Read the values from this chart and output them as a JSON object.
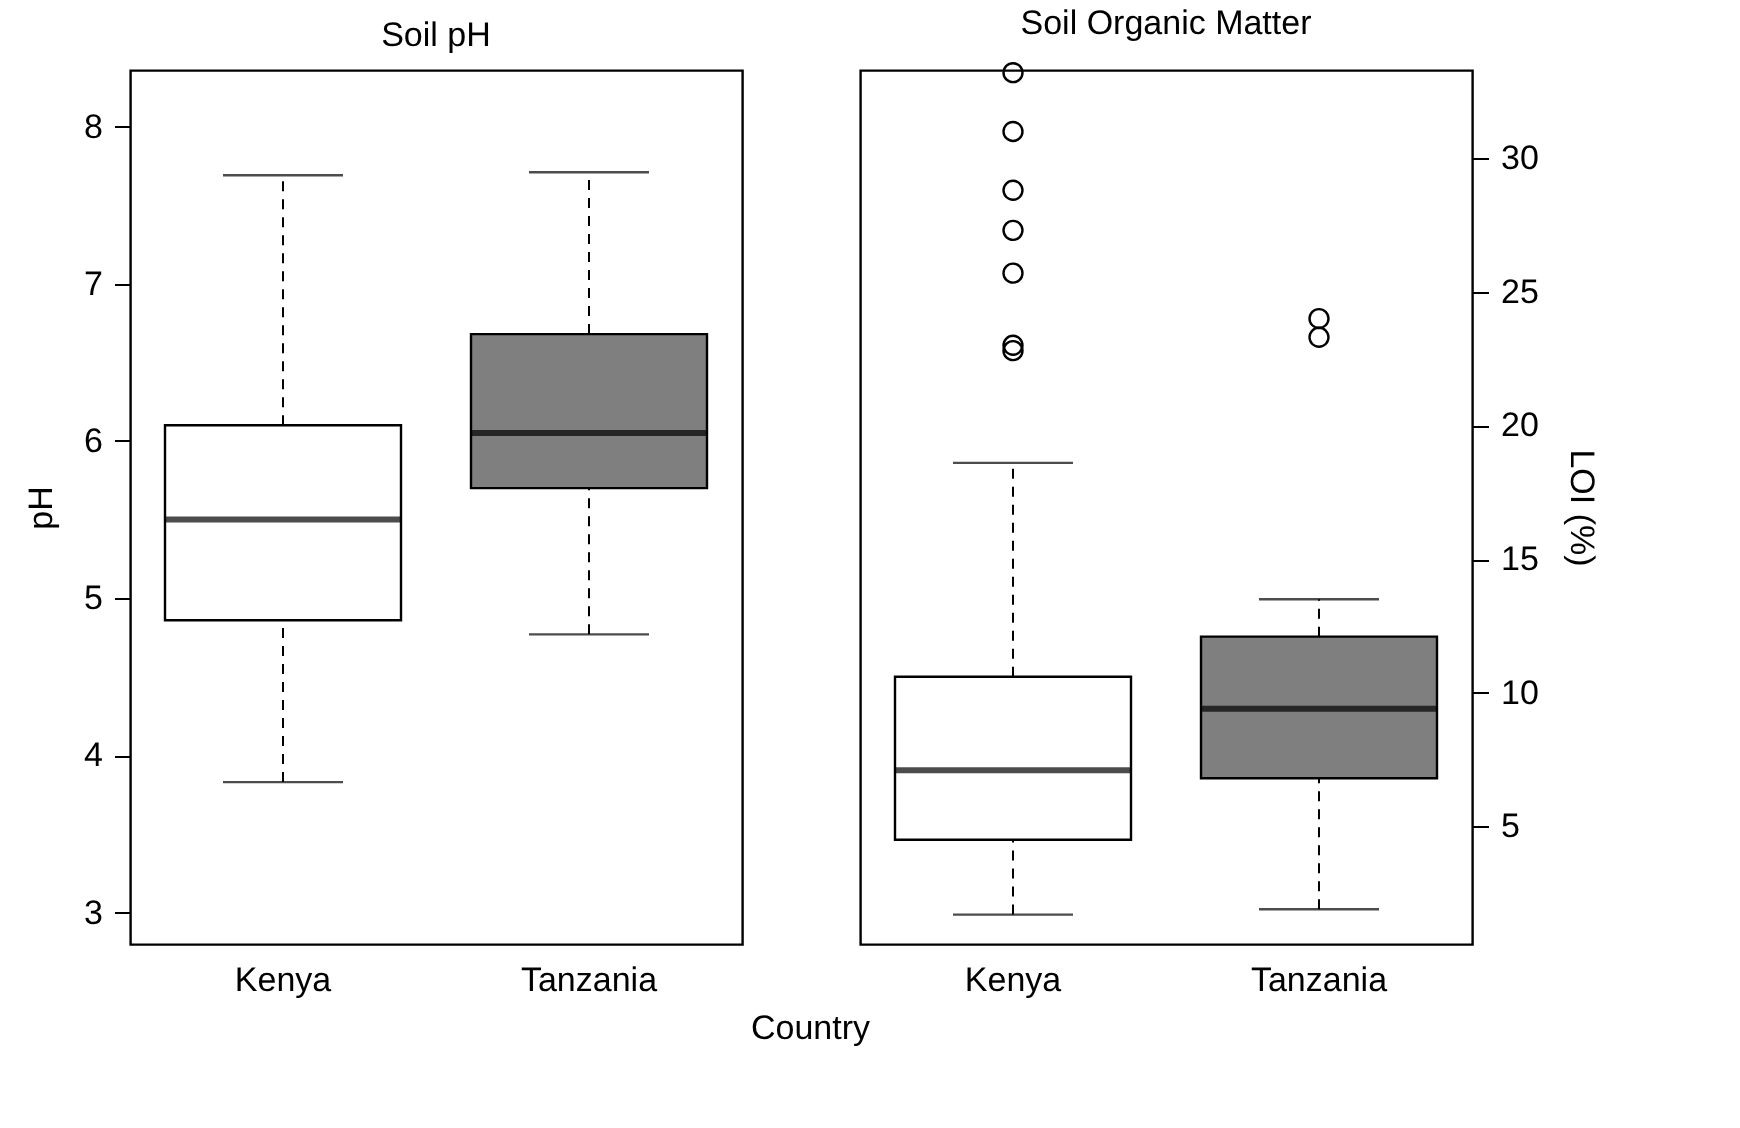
{
  "chart_data": [
    {
      "type": "box",
      "title": "Soil pH",
      "xlabel": "Country",
      "ylabel": "pH",
      "categories": [
        "Kenya",
        "Tanzania"
      ],
      "colors": [
        "#ffffff",
        "#7f7f7f"
      ],
      "boxes": [
        {
          "low": 3.83,
          "q1": 4.86,
          "median": 5.5,
          "q3": 6.1,
          "high": 7.69
        },
        {
          "low": 4.77,
          "q1": 5.7,
          "median": 6.05,
          "q3": 6.68,
          "high": 7.71
        }
      ],
      "ylim": [
        2.8,
        8.36
      ],
      "yticks": [
        3,
        4,
        5,
        6,
        7,
        8
      ]
    },
    {
      "type": "box",
      "title": "Soil Organic Matter",
      "ylabel": "LOI (%)",
      "categories": [
        "Kenya",
        "Tanzania"
      ],
      "colors": [
        "#ffffff",
        "#7f7f7f"
      ],
      "boxes": [
        {
          "low": 1.7,
          "q1": 4.5,
          "median": 7.1,
          "q3": 10.6,
          "high": 18.6,
          "outliers": [
            33.2,
            31.0,
            28.8,
            27.3,
            25.7,
            23.0,
            22.8
          ]
        },
        {
          "low": 1.9,
          "q1": 6.8,
          "median": 9.4,
          "q3": 12.1,
          "high": 13.5,
          "outliers": [
            24.0,
            23.3
          ]
        }
      ],
      "ylim": [
        0.6,
        33.3
      ],
      "yticks": [
        5,
        10,
        15,
        20,
        25,
        30
      ]
    }
  ]
}
